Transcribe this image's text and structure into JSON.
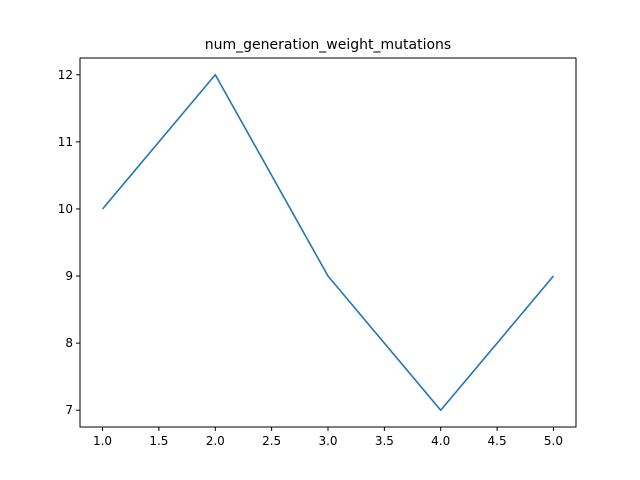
{
  "chart_data": {
    "type": "line",
    "title": "num_generation_weight_mutations",
    "xlabel": "",
    "ylabel": "",
    "x": [
      1,
      2,
      3,
      4,
      5
    ],
    "series": [
      {
        "values": [
          10,
          12,
          9,
          7,
          9
        ],
        "color": "#1f77b4"
      }
    ],
    "xlim": [
      0.8,
      5.2
    ],
    "ylim": [
      6.75,
      12.25
    ],
    "xticks": [
      1.0,
      1.5,
      2.0,
      2.5,
      3.0,
      3.5,
      4.0,
      4.5,
      5.0
    ],
    "xtick_labels": [
      "1.0",
      "1.5",
      "2.0",
      "2.5",
      "3.0",
      "3.5",
      "4.0",
      "4.5",
      "5.0"
    ],
    "yticks": [
      7,
      8,
      9,
      10,
      11,
      12
    ],
    "ytick_labels": [
      "7",
      "8",
      "9",
      "10",
      "11",
      "12"
    ],
    "grid": false,
    "legend": "none"
  }
}
